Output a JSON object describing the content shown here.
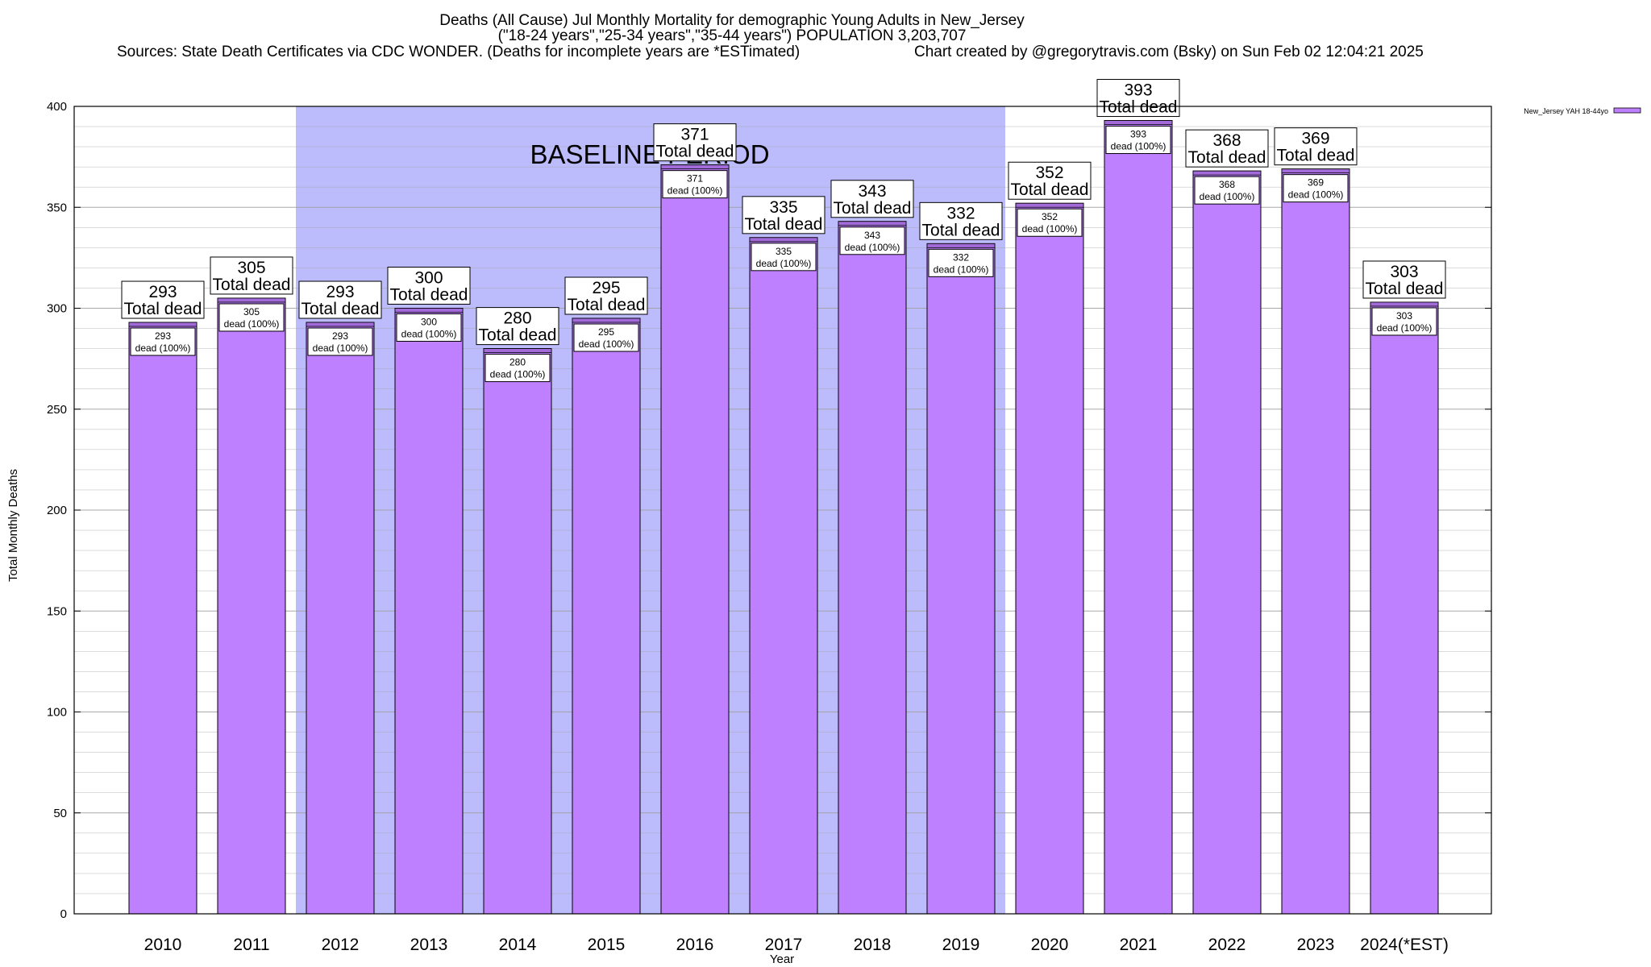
{
  "colors": {
    "bar_fill": "#bf80ff",
    "bar_cap": "#a26bd9",
    "shade": "#bcbcfc",
    "grid": "#a0a0a0"
  },
  "chart_data": {
    "type": "bar",
    "title_lines": [
      "Deaths (All Cause) Jul Monthly Mortality for demographic Young Adults in New_Jersey",
      "(\"18-24 years\",\"25-34 years\",\"35-44 years\") POPULATION 3,203,707",
      "Sources: State Death Certificates via CDC WONDER. (Deaths for incomplete years are *ESTimated)",
      "Chart created by @gregorytravis.com (Bsky) on Sun Feb 02 12:04:21 2025"
    ],
    "xlabel": "Year",
    "ylabel": "Total Monthly Deaths",
    "ylim": [
      0,
      400
    ],
    "yticks": [
      0,
      50,
      100,
      150,
      200,
      250,
      300,
      350,
      400
    ],
    "categories": [
      "2010",
      "2011",
      "2012",
      "2013",
      "2014",
      "2015",
      "2016",
      "2017",
      "2018",
      "2019",
      "2020",
      "2021",
      "2022",
      "2023",
      "2024(*EST)"
    ],
    "series": [
      {
        "name": "New_Jersey YAH 18-44yo",
        "values": [
          293,
          305,
          293,
          300,
          280,
          295,
          371,
          335,
          343,
          332,
          352,
          393,
          368,
          369,
          303
        ]
      }
    ],
    "total_label_text": "Total dead",
    "bar_label_text": "dead (100%)",
    "shaded_region": {
      "label": "BASELINE PERIOD",
      "from_category": "2012",
      "to_category": "2019"
    },
    "legend_position": "top-right",
    "grid": true
  }
}
